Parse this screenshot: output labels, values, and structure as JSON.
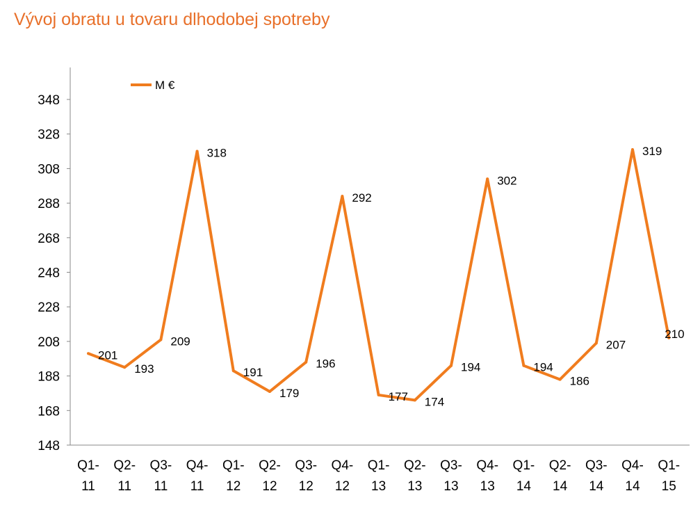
{
  "chart_data": {
    "type": "line",
    "title": "Vývoj obratu u tovaru dlhodobej spotreby",
    "xlabel": "",
    "ylabel": "",
    "categories": [
      [
        "Q1-",
        "11"
      ],
      [
        "Q2-",
        "11"
      ],
      [
        "Q3-",
        "11"
      ],
      [
        "Q4-",
        "11"
      ],
      [
        "Q1-",
        "12"
      ],
      [
        "Q2-",
        "12"
      ],
      [
        "Q3-",
        "12"
      ],
      [
        "Q4-",
        "12"
      ],
      [
        "Q1-",
        "13"
      ],
      [
        "Q2-",
        "13"
      ],
      [
        "Q3-",
        "13"
      ],
      [
        "Q4-",
        "13"
      ],
      [
        "Q1-",
        "14"
      ],
      [
        "Q2-",
        "14"
      ],
      [
        "Q3-",
        "14"
      ],
      [
        "Q4-",
        "14"
      ],
      [
        "Q1-",
        "15"
      ]
    ],
    "series": [
      {
        "name": "M €",
        "color": "#f07c1e",
        "values": [
          201,
          193,
          209,
          318,
          191,
          179,
          196,
          292,
          177,
          174,
          194,
          302,
          194,
          186,
          207,
          319,
          210
        ]
      }
    ],
    "ylim": [
      148,
      358
    ],
    "yticks": [
      148,
      168,
      188,
      208,
      228,
      248,
      268,
      288,
      308,
      328,
      348
    ],
    "grid": false,
    "legend": "top-left"
  }
}
